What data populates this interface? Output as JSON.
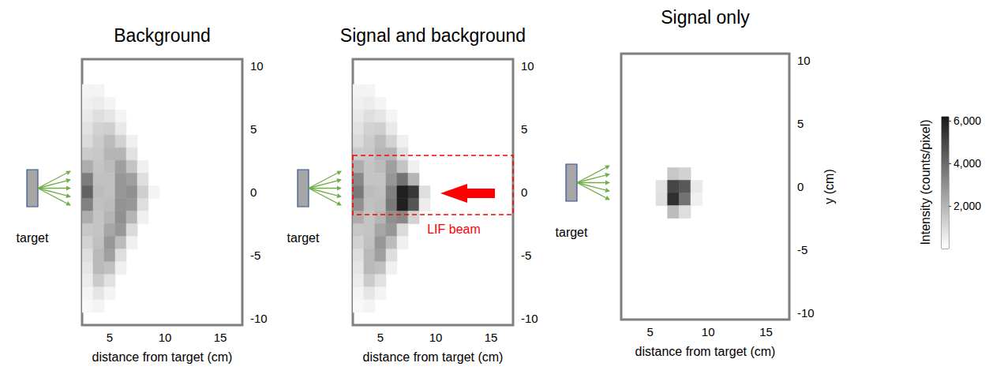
{
  "chart_data": [
    {
      "type": "heatmap",
      "title": "Background",
      "x_label": "distance from target (cm)",
      "xlim": [
        2.5,
        17
      ],
      "xticks": [
        5,
        10,
        15
      ],
      "ylim": [
        -10.5,
        10.5
      ],
      "yticks": [
        -10,
        -5,
        0,
        5,
        10
      ],
      "annotations": [
        {
          "kind": "target",
          "text": "target"
        }
      ],
      "cells": [
        [
          3,
          8,
          300
        ],
        [
          4,
          8,
          300
        ],
        [
          3,
          7,
          400
        ],
        [
          4,
          7,
          500
        ],
        [
          5,
          7,
          300
        ],
        [
          3,
          6,
          600
        ],
        [
          4,
          6,
          900
        ],
        [
          5,
          6,
          700
        ],
        [
          6,
          6,
          300
        ],
        [
          3,
          5,
          800
        ],
        [
          4,
          5,
          1200
        ],
        [
          5,
          5,
          1300
        ],
        [
          6,
          5,
          600
        ],
        [
          3,
          4,
          1000
        ],
        [
          4,
          4,
          1400
        ],
        [
          5,
          4,
          1800
        ],
        [
          6,
          4,
          1200
        ],
        [
          7,
          4,
          400
        ],
        [
          3,
          3,
          1400
        ],
        [
          4,
          3,
          1500
        ],
        [
          5,
          3,
          2000
        ],
        [
          6,
          3,
          2000
        ],
        [
          7,
          3,
          800
        ],
        [
          3,
          2,
          2200
        ],
        [
          4,
          2,
          1600
        ],
        [
          5,
          2,
          1800
        ],
        [
          6,
          2,
          2600
        ],
        [
          7,
          2,
          1600
        ],
        [
          8,
          2,
          400
        ],
        [
          3,
          1,
          3500
        ],
        [
          4,
          1,
          1700
        ],
        [
          5,
          1,
          1700
        ],
        [
          6,
          1,
          2800
        ],
        [
          7,
          1,
          2600
        ],
        [
          8,
          1,
          900
        ],
        [
          3,
          0,
          4200
        ],
        [
          4,
          0,
          1800
        ],
        [
          5,
          0,
          1700
        ],
        [
          6,
          0,
          2800
        ],
        [
          7,
          0,
          3000
        ],
        [
          8,
          0,
          1300
        ],
        [
          9,
          0,
          300
        ],
        [
          3,
          -1,
          3400
        ],
        [
          4,
          -1,
          1700
        ],
        [
          5,
          -1,
          1800
        ],
        [
          6,
          -1,
          2900
        ],
        [
          7,
          -1,
          2800
        ],
        [
          8,
          -1,
          900
        ],
        [
          3,
          -2,
          2200
        ],
        [
          4,
          -2,
          1600
        ],
        [
          5,
          -2,
          2000
        ],
        [
          6,
          -2,
          3000
        ],
        [
          7,
          -2,
          2000
        ],
        [
          8,
          -2,
          400
        ],
        [
          3,
          -3,
          1500
        ],
        [
          4,
          -3,
          1600
        ],
        [
          5,
          -3,
          2400
        ],
        [
          6,
          -3,
          2800
        ],
        [
          7,
          -3,
          1000
        ],
        [
          3,
          -4,
          1200
        ],
        [
          4,
          -4,
          1700
        ],
        [
          5,
          -4,
          2800
        ],
        [
          6,
          -4,
          1800
        ],
        [
          7,
          -4,
          400
        ],
        [
          3,
          -5,
          900
        ],
        [
          4,
          -5,
          1900
        ],
        [
          5,
          -5,
          2600
        ],
        [
          6,
          -5,
          900
        ],
        [
          3,
          -6,
          700
        ],
        [
          4,
          -6,
          1900
        ],
        [
          5,
          -6,
          1700
        ],
        [
          6,
          -6,
          400
        ],
        [
          3,
          -7,
          500
        ],
        [
          4,
          -7,
          1400
        ],
        [
          5,
          -7,
          800
        ],
        [
          3,
          -8,
          300
        ],
        [
          4,
          -8,
          700
        ],
        [
          5,
          -8,
          300
        ],
        [
          3,
          -9,
          200
        ],
        [
          4,
          -9,
          300
        ]
      ]
    },
    {
      "type": "heatmap",
      "title": "Signal and background",
      "x_label": "distance from target (cm)",
      "xlim": [
        2.5,
        17
      ],
      "xticks": [
        5,
        10,
        15
      ],
      "ylim": [
        -10.5,
        10.5
      ],
      "yticks": [
        -10,
        -5,
        0,
        5,
        10
      ],
      "annotations": [
        {
          "kind": "target",
          "text": "target"
        },
        {
          "kind": "beam",
          "text": "LIF beam"
        }
      ],
      "cells": [
        [
          3,
          8,
          300
        ],
        [
          4,
          8,
          300
        ],
        [
          3,
          7,
          400
        ],
        [
          4,
          7,
          500
        ],
        [
          5,
          7,
          300
        ],
        [
          3,
          6,
          600
        ],
        [
          4,
          6,
          900
        ],
        [
          5,
          6,
          700
        ],
        [
          6,
          6,
          300
        ],
        [
          3,
          5,
          800
        ],
        [
          4,
          5,
          1200
        ],
        [
          5,
          5,
          1300
        ],
        [
          6,
          5,
          600
        ],
        [
          3,
          4,
          1000
        ],
        [
          4,
          4,
          1400
        ],
        [
          5,
          4,
          1800
        ],
        [
          6,
          4,
          1200
        ],
        [
          7,
          4,
          400
        ],
        [
          3,
          3,
          1400
        ],
        [
          4,
          3,
          1500
        ],
        [
          5,
          3,
          2000
        ],
        [
          6,
          3,
          2000
        ],
        [
          7,
          3,
          800
        ],
        [
          3,
          2,
          2200
        ],
        [
          4,
          2,
          1600
        ],
        [
          5,
          2,
          1800
        ],
        [
          6,
          2,
          2600
        ],
        [
          7,
          2,
          1600
        ],
        [
          8,
          2,
          400
        ],
        [
          3,
          1,
          3200
        ],
        [
          4,
          1,
          1600
        ],
        [
          5,
          1,
          1600
        ],
        [
          6,
          1,
          2800
        ],
        [
          7,
          1,
          3800
        ],
        [
          8,
          1,
          2000
        ],
        [
          3,
          0,
          3600
        ],
        [
          4,
          0,
          1800
        ],
        [
          5,
          0,
          1700
        ],
        [
          6,
          0,
          3400
        ],
        [
          7,
          0,
          6000
        ],
        [
          8,
          0,
          5400
        ],
        [
          9,
          0,
          900
        ],
        [
          3,
          -1,
          3000
        ],
        [
          4,
          -1,
          1700
        ],
        [
          5,
          -1,
          1800
        ],
        [
          6,
          -1,
          3600
        ],
        [
          7,
          -1,
          6000
        ],
        [
          8,
          -1,
          4600
        ],
        [
          9,
          -1,
          500
        ],
        [
          3,
          -2,
          2200
        ],
        [
          4,
          -2,
          1600
        ],
        [
          5,
          -2,
          2000
        ],
        [
          6,
          -2,
          3000
        ],
        [
          7,
          -2,
          3200
        ],
        [
          8,
          -2,
          1200
        ],
        [
          3,
          -3,
          1500
        ],
        [
          4,
          -3,
          1600
        ],
        [
          5,
          -3,
          2400
        ],
        [
          6,
          -3,
          2800
        ],
        [
          7,
          -3,
          1000
        ],
        [
          3,
          -4,
          1200
        ],
        [
          4,
          -4,
          1700
        ],
        [
          5,
          -4,
          2800
        ],
        [
          6,
          -4,
          1800
        ],
        [
          7,
          -4,
          400
        ],
        [
          3,
          -5,
          900
        ],
        [
          4,
          -5,
          1900
        ],
        [
          5,
          -5,
          2600
        ],
        [
          6,
          -5,
          900
        ],
        [
          3,
          -6,
          700
        ],
        [
          4,
          -6,
          1900
        ],
        [
          5,
          -6,
          1700
        ],
        [
          6,
          -6,
          400
        ],
        [
          3,
          -7,
          500
        ],
        [
          4,
          -7,
          1400
        ],
        [
          5,
          -7,
          800
        ],
        [
          3,
          -8,
          300
        ],
        [
          4,
          -8,
          700
        ],
        [
          5,
          -8,
          300
        ],
        [
          3,
          -9,
          200
        ],
        [
          4,
          -9,
          300
        ]
      ]
    },
    {
      "type": "heatmap",
      "title": "Signal only",
      "x_label": "distance from target (cm)",
      "y_label": "y (cm)",
      "xlim": [
        2.5,
        17
      ],
      "xticks": [
        5,
        10,
        15
      ],
      "ylim": [
        -10.5,
        10.5
      ],
      "yticks": [
        -10,
        -5,
        0,
        5,
        10
      ],
      "annotations": [
        {
          "kind": "target",
          "text": "target"
        }
      ],
      "cells": [
        [
          7,
          1,
          1500
        ],
        [
          8,
          1,
          1200
        ],
        [
          6,
          0,
          800
        ],
        [
          7,
          0,
          5000
        ],
        [
          8,
          0,
          4500
        ],
        [
          9,
          0,
          600
        ],
        [
          6,
          -1,
          900
        ],
        [
          7,
          -1,
          5600
        ],
        [
          8,
          -1,
          3800
        ],
        [
          9,
          -1,
          400
        ],
        [
          7,
          -2,
          1800
        ],
        [
          8,
          -2,
          900
        ]
      ]
    }
  ],
  "colorbar": {
    "label": "Intensity (counts/pixel)",
    "range": [
      0,
      6200
    ],
    "ticks": [
      2000,
      4000,
      6000
    ]
  }
}
